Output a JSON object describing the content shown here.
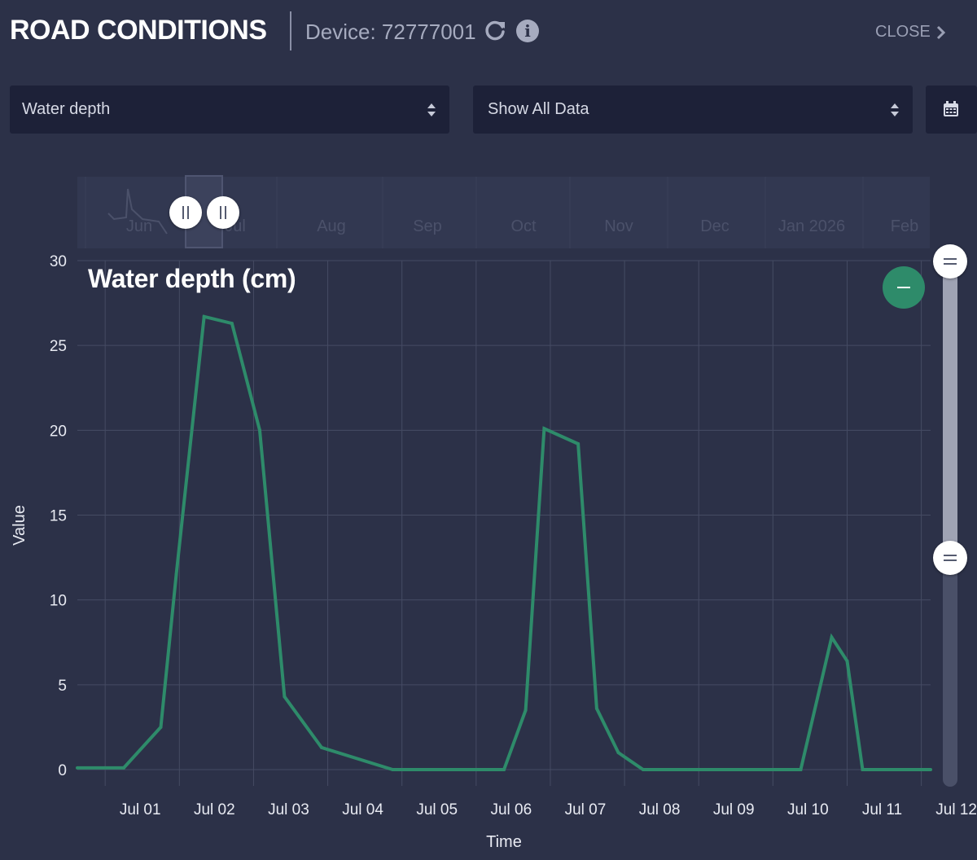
{
  "header": {
    "title": "ROAD CONDITIONS",
    "device": "Device: 72777001",
    "refresh_icon": "refresh-icon",
    "info_icon": "info-icon",
    "info_glyph": "i",
    "close_label": "CLOSE"
  },
  "controls": {
    "metric_select": "Water depth",
    "range_select": "Show All Data",
    "calendar_icon": "calendar-icon"
  },
  "navigator": {
    "months": [
      "Jun",
      "Jul",
      "Aug",
      "Sep",
      "Oct",
      "Nov",
      "Dec",
      "Jan 2026",
      "Feb"
    ]
  },
  "colors": {
    "line": "#2e8b6a",
    "background": "#2c3148",
    "grid": "#454b63"
  },
  "chart_data": {
    "type": "line",
    "title": "Water depth (cm)",
    "xlabel": "Time",
    "ylabel": "Value",
    "ylim": [
      0,
      30
    ],
    "yticks": [
      0,
      5,
      10,
      15,
      20,
      25,
      30
    ],
    "xlim": [
      "2025-06-30T15:00",
      "2025-07-12T03:00"
    ],
    "xticks": [
      "Jul 01",
      "Jul 02",
      "Jul 03",
      "Jul 04",
      "Jul 05",
      "Jul 06",
      "Jul 07",
      "Jul 08",
      "Jul 09",
      "Jul 10",
      "Jul 11",
      "Jul 12"
    ],
    "grid": true,
    "series": [
      {
        "x": [
          "2025-06-30T15:00",
          "2025-07-01T06:00",
          "2025-07-01T18:00",
          "2025-07-01T23:00",
          "2025-07-02T08:00",
          "2025-07-02T17:00",
          "2025-07-03T02:00",
          "2025-07-03T10:00",
          "2025-07-03T22:00",
          "2025-07-04T21:00",
          "2025-07-06T00:00",
          "2025-07-06T09:00",
          "2025-07-06T16:00",
          "2025-07-06T22:00",
          "2025-07-07T09:00",
          "2025-07-07T15:00",
          "2025-07-07T22:00",
          "2025-07-08T06:00",
          "2025-07-08T21:00",
          "2025-07-09T23:00",
          "2025-07-10T09:00",
          "2025-07-10T19:00",
          "2025-07-11T00:00",
          "2025-07-11T05:00",
          "2025-07-12T03:00"
        ],
        "values": [
          0.1,
          0.1,
          2.5,
          11.5,
          26.7,
          26.3,
          20.0,
          4.3,
          1.3,
          0.0,
          0.0,
          0.0,
          3.5,
          20.1,
          19.2,
          3.6,
          1.0,
          0.0,
          0.0,
          0.0,
          0.0,
          7.8,
          6.4,
          0.0,
          0.0
        ]
      }
    ]
  }
}
